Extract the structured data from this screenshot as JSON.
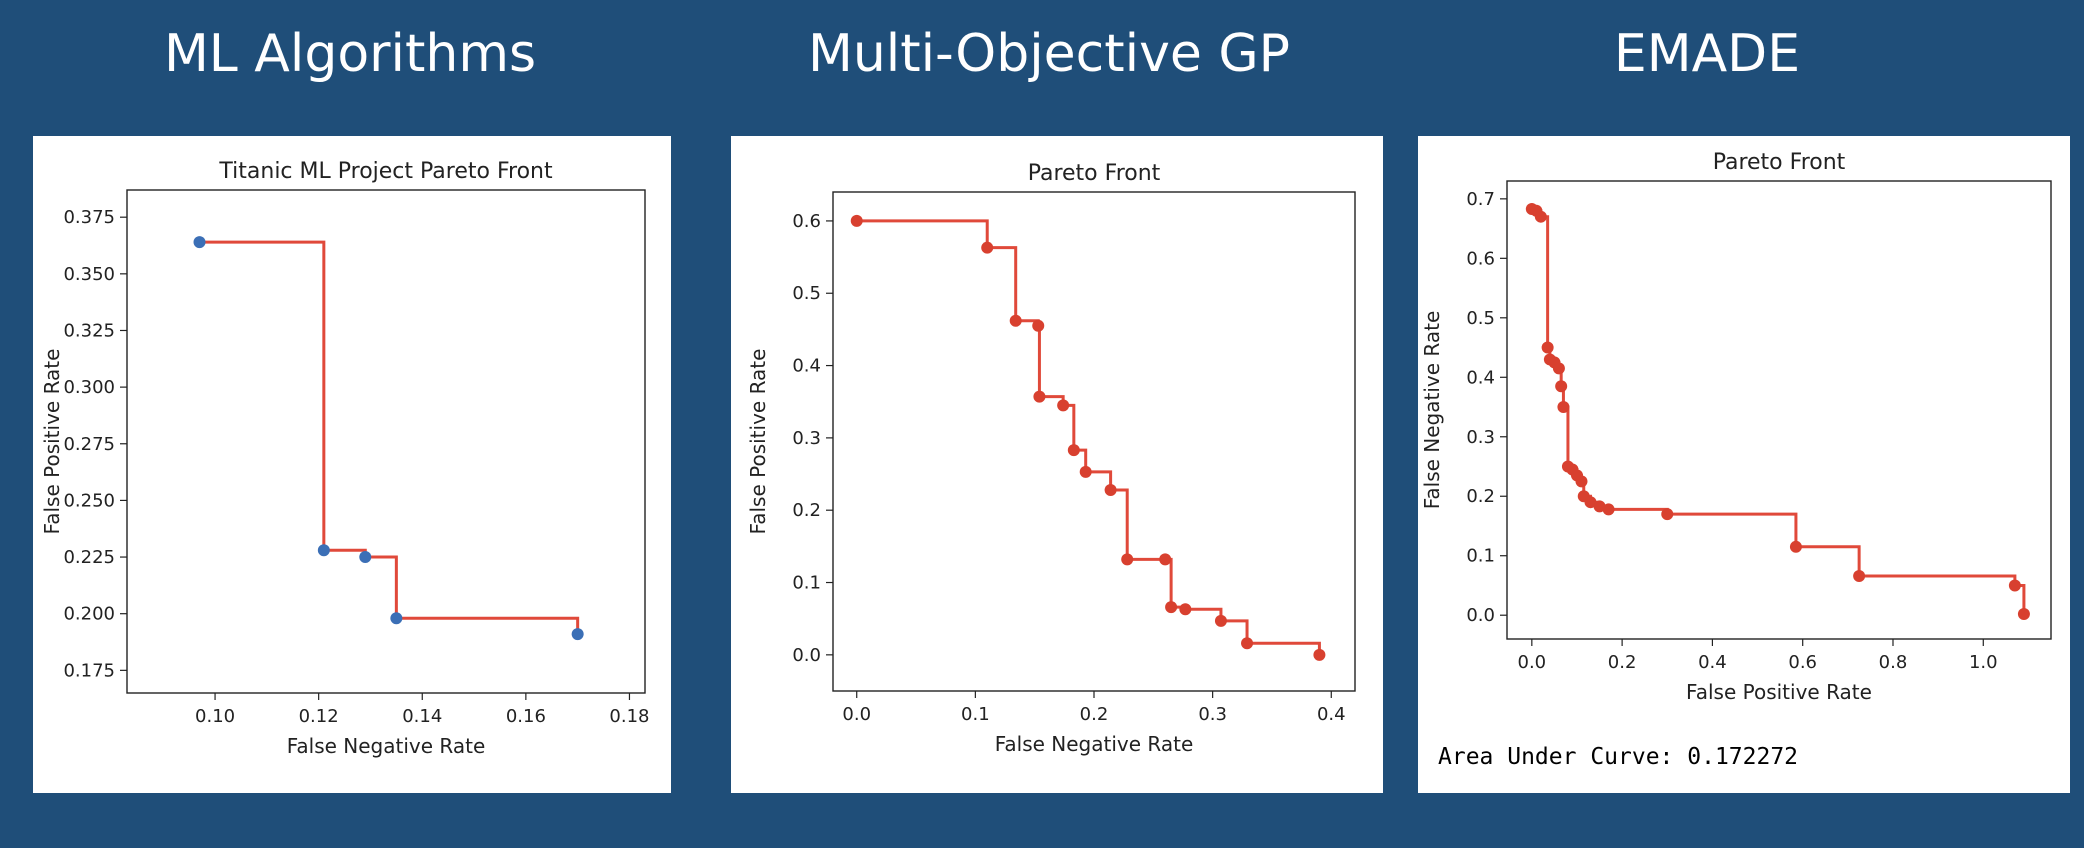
{
  "headings": [
    "ML Algorithms",
    "Multi-Objective GP",
    "EMADE"
  ],
  "colors": {
    "background": "#1f4e79",
    "front_line": "#e0493a",
    "point_blue": "#3b6fb6",
    "point_red": "#d8402f"
  },
  "footer": {
    "auc_text": "Area Under Curve: 0.172272"
  },
  "chart_data": [
    {
      "type": "line",
      "step": "post",
      "title": "Titanic ML Project Pareto Front",
      "xlabel": "False Negative Rate",
      "ylabel": "False Positive Rate",
      "xlim": [
        0.083,
        0.183
      ],
      "ylim": [
        0.165,
        0.387
      ],
      "xticks": [
        0.1,
        0.12,
        0.14,
        0.16,
        0.18
      ],
      "xticklabels": [
        "0.10",
        "0.12",
        "0.14",
        "0.16",
        "0.18"
      ],
      "yticks": [
        0.175,
        0.2,
        0.225,
        0.25,
        0.275,
        0.3,
        0.325,
        0.35,
        0.375
      ],
      "yticklabels": [
        "0.175",
        "0.200",
        "0.225",
        "0.250",
        "0.275",
        "0.300",
        "0.325",
        "0.350",
        "0.375"
      ],
      "grid": false,
      "point_color": "#3b6fb6",
      "points": [
        [
          0.097,
          0.364
        ],
        [
          0.121,
          0.228
        ],
        [
          0.129,
          0.225
        ],
        [
          0.135,
          0.198
        ],
        [
          0.17,
          0.191
        ]
      ]
    },
    {
      "type": "line",
      "step": "post",
      "title": "Pareto Front",
      "xlabel": "False Negative Rate",
      "ylabel": "False Positive Rate",
      "xlim": [
        -0.02,
        0.42
      ],
      "ylim": [
        -0.05,
        0.64
      ],
      "xticks": [
        0.0,
        0.1,
        0.2,
        0.3,
        0.4
      ],
      "xticklabels": [
        "0.0",
        "0.1",
        "0.2",
        "0.3",
        "0.4"
      ],
      "yticks": [
        0.0,
        0.1,
        0.2,
        0.3,
        0.4,
        0.5,
        0.6
      ],
      "yticklabels": [
        "0.0",
        "0.1",
        "0.2",
        "0.3",
        "0.4",
        "0.5",
        "0.6"
      ],
      "grid": false,
      "point_color": "#d8402f",
      "points": [
        [
          0.0,
          0.6
        ],
        [
          0.11,
          0.563
        ],
        [
          0.134,
          0.462
        ],
        [
          0.153,
          0.455
        ],
        [
          0.154,
          0.357
        ],
        [
          0.174,
          0.345
        ],
        [
          0.183,
          0.283
        ],
        [
          0.193,
          0.253
        ],
        [
          0.214,
          0.228
        ],
        [
          0.228,
          0.132
        ],
        [
          0.26,
          0.132
        ],
        [
          0.265,
          0.066
        ],
        [
          0.277,
          0.063
        ],
        [
          0.307,
          0.047
        ],
        [
          0.329,
          0.016
        ],
        [
          0.39,
          0.0
        ]
      ]
    },
    {
      "type": "line",
      "step": "post",
      "title": "Pareto Front",
      "xlabel": "False Positive Rate",
      "ylabel": "False Negative Rate",
      "xlim": [
        -0.055,
        1.15
      ],
      "ylim": [
        -0.04,
        0.73
      ],
      "xticks": [
        0.0,
        0.2,
        0.4,
        0.6,
        0.8,
        1.0
      ],
      "xticklabels": [
        "0.0",
        "0.2",
        "0.4",
        "0.6",
        "0.8",
        "1.0"
      ],
      "yticks": [
        0.0,
        0.1,
        0.2,
        0.3,
        0.4,
        0.5,
        0.6,
        0.7
      ],
      "yticklabels": [
        "0.0",
        "0.1",
        "0.2",
        "0.3",
        "0.4",
        "0.5",
        "0.6",
        "0.7"
      ],
      "grid": false,
      "point_color": "#d8402f",
      "points": [
        [
          0.0,
          0.683
        ],
        [
          0.01,
          0.68
        ],
        [
          0.02,
          0.67
        ],
        [
          0.035,
          0.45
        ],
        [
          0.04,
          0.43
        ],
        [
          0.05,
          0.425
        ],
        [
          0.06,
          0.415
        ],
        [
          0.065,
          0.385
        ],
        [
          0.07,
          0.35
        ],
        [
          0.08,
          0.25
        ],
        [
          0.09,
          0.245
        ],
        [
          0.1,
          0.235
        ],
        [
          0.11,
          0.225
        ],
        [
          0.115,
          0.2
        ],
        [
          0.13,
          0.19
        ],
        [
          0.15,
          0.183
        ],
        [
          0.17,
          0.178
        ],
        [
          0.3,
          0.17
        ],
        [
          0.585,
          0.115
        ],
        [
          0.725,
          0.066
        ],
        [
          1.07,
          0.05
        ],
        [
          1.09,
          0.002
        ]
      ]
    }
  ]
}
